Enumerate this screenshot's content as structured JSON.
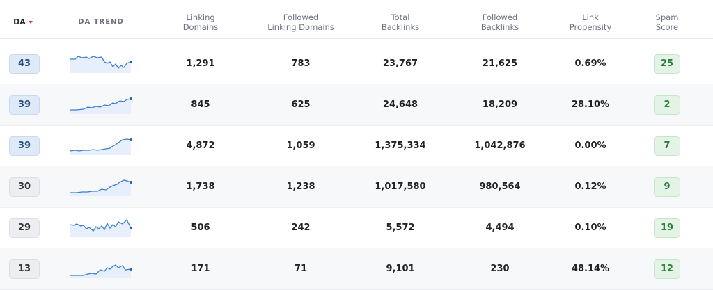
{
  "header": {
    "da": "DA",
    "trend": "DA TREND",
    "columns": [
      [
        "Linking",
        "Domains"
      ],
      [
        "Followed",
        "Linking Domains"
      ],
      [
        "Total",
        "Backlinks"
      ],
      [
        "Followed",
        "Backlinks"
      ],
      [
        "Link",
        "Propensity"
      ],
      [
        "Spam",
        "Score"
      ]
    ]
  },
  "table": {
    "rows": [
      [
        "43",
        "1,291",
        "783",
        "23,767",
        "21,625",
        "0.69%",
        "25"
      ],
      [
        "39",
        "845",
        "625",
        "24,648",
        "18,209",
        "28.10%",
        "2"
      ],
      [
        "39",
        "4,872",
        "1,059",
        "1,375,334",
        "1,042,876",
        "0.00%",
        "7"
      ],
      [
        "30",
        "1,738",
        "1,238",
        "1,017,580",
        "980,564",
        "0.12%",
        "9"
      ],
      [
        "29",
        "506",
        "242",
        "5,572",
        "4,494",
        "0.10%",
        "19"
      ],
      [
        "13",
        "171",
        "71",
        "9,101",
        "230",
        "48.14%",
        "12"
      ]
    ]
  }
}
